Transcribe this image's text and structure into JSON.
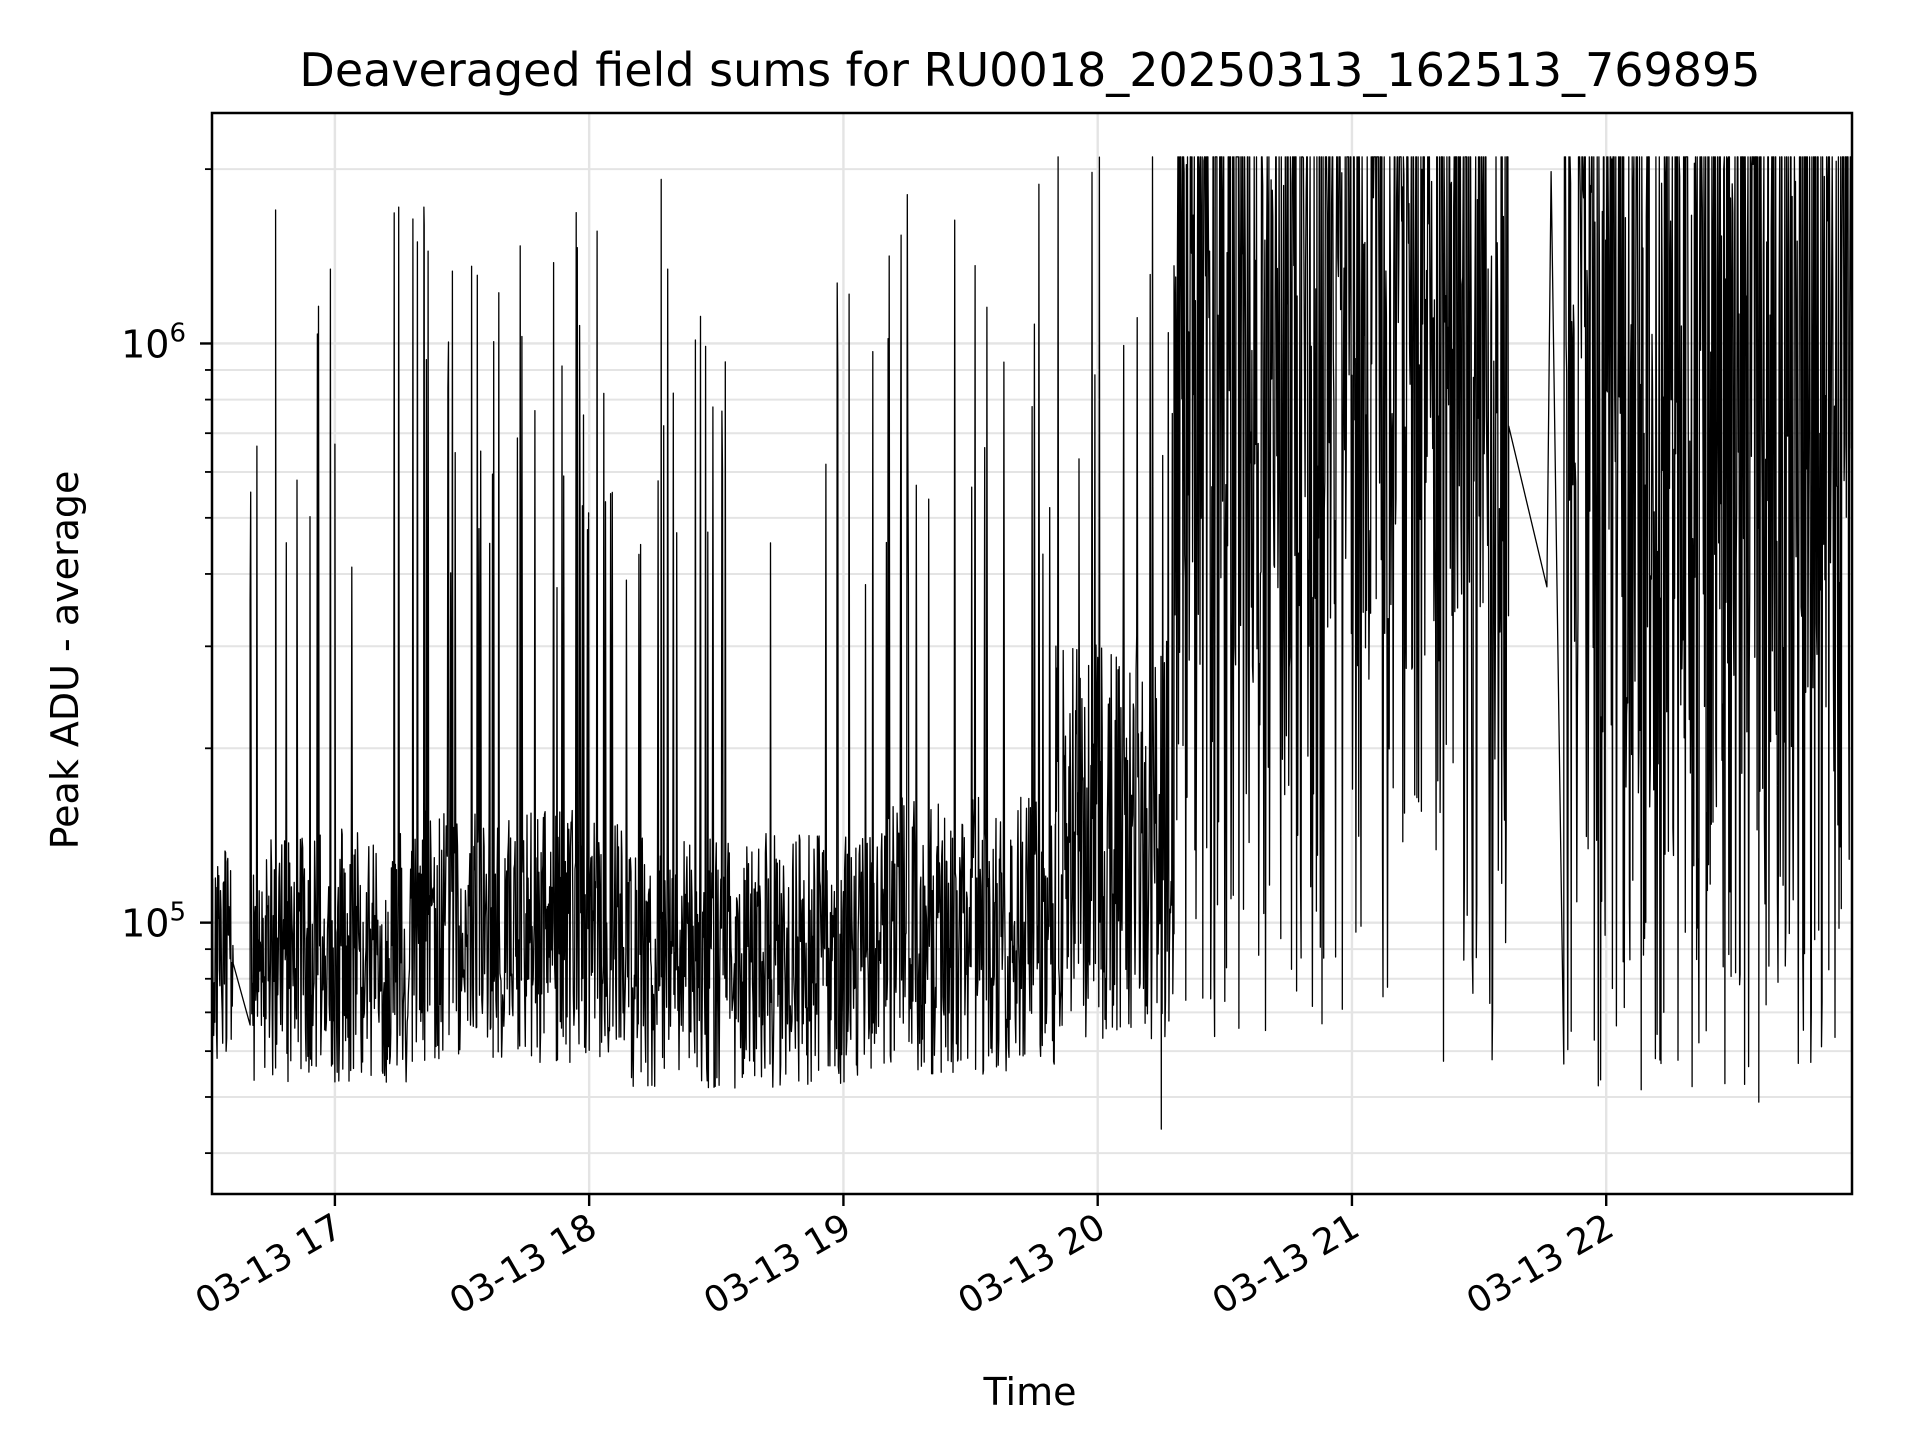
{
  "chart_data": {
    "type": "line",
    "title": "Deaveraged field sums for RU0018_20250313_162513_769895",
    "xlabel": "Time",
    "ylabel": "Peak ADU - average",
    "y_scale": "log",
    "xlim": [
      "2025-03-13 16:31",
      "2025-03-13 22:58"
    ],
    "ylim": [
      34000,
      2500000
    ],
    "grid": true,
    "line_color": "#000000",
    "x_ticks": [
      "03-13 17",
      "03-13 18",
      "03-13 19",
      "03-13 20",
      "03-13 21",
      "03-13 22"
    ],
    "y_ticks": [
      {
        "value": 100000,
        "base": "10",
        "exp": "5"
      },
      {
        "value": 1000000,
        "base": "10",
        "exp": "6"
      }
    ],
    "segments": [
      {
        "start": "2025-03-13 16:31",
        "end": "2025-03-13 16:36",
        "baseline": 88000,
        "spread": 0.18,
        "spike_rate": 0.0
      },
      {
        "start": "2025-03-13 16:40",
        "end": "2025-03-13 17:20",
        "baseline": 88000,
        "spread": 0.22,
        "spike_rate": 0.05
      },
      {
        "start": "2025-03-13 17:20",
        "end": "2025-03-13 18:10",
        "baseline": 95000,
        "spread": 0.22,
        "spike_rate": 0.12
      },
      {
        "start": "2025-03-13 18:10",
        "end": "2025-03-13 19:10",
        "baseline": 86000,
        "spread": 0.22,
        "spike_rate": 0.05
      },
      {
        "start": "2025-03-13 19:10",
        "end": "2025-03-13 19:50",
        "baseline": 95000,
        "spread": 0.24,
        "spike_rate": 0.08
      },
      {
        "start": "2025-03-13 19:50",
        "end": "2025-03-13 20:18",
        "baseline": 140000,
        "spread": 0.35,
        "spike_rate": 0.06
      },
      {
        "start": "2025-03-13 20:18",
        "end": "2025-03-13 21:37",
        "baseline": 900000,
        "spread": 0.55,
        "spike_rate": 0.25
      },
      {
        "start": "2025-03-13 21:50",
        "end": "2025-03-13 22:58",
        "baseline": 800000,
        "spread": 0.6,
        "spike_rate": 0.25
      }
    ],
    "notable_points": [
      {
        "x": "2025-03-13 16:31",
        "y": 70000
      },
      {
        "x": "2025-03-13 16:32",
        "y": 115000
      },
      {
        "x": "2025-03-13 16:36",
        "y": 85000
      },
      {
        "x": "2025-03-13 16:40",
        "y": 360000
      },
      {
        "x": "2025-03-13 16:46",
        "y": 1700000
      },
      {
        "x": "2025-03-13 17:00",
        "y": 670000
      },
      {
        "x": "2025-03-13 17:21",
        "y": 1720000
      },
      {
        "x": "2025-03-13 18:17",
        "y": 1920000
      },
      {
        "x": "2025-03-13 20:15",
        "y": 44000
      },
      {
        "x": "2025-03-13 21:37",
        "y": 720000
      },
      {
        "x": "2025-03-13 21:46",
        "y": 380000
      },
      {
        "x": "2025-03-13 21:47",
        "y": 1980000
      },
      {
        "x": "2025-03-13 21:50",
        "y": 370000
      },
      {
        "x": "2025-03-13 22:36",
        "y": 49000
      }
    ]
  }
}
